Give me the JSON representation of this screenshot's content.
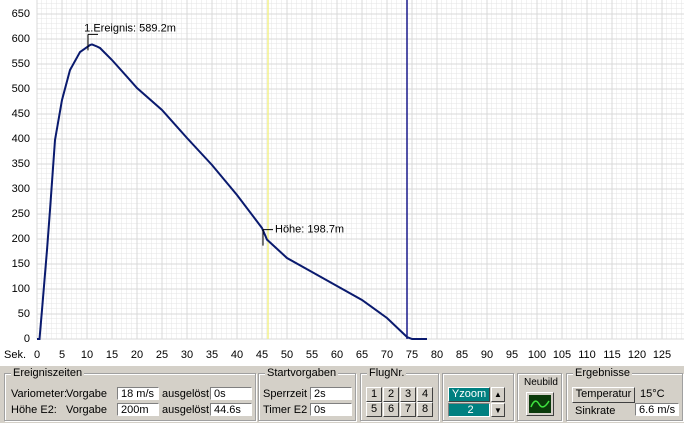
{
  "chart_data": {
    "type": "line",
    "x_label": "Sek.",
    "x": [
      0,
      0.5,
      1,
      1.5,
      2,
      2.6,
      3.6,
      5,
      6.6,
      8.6,
      10.6,
      11,
      12,
      12.6,
      15,
      20,
      25,
      30,
      35,
      40,
      45,
      46,
      50,
      55,
      60,
      65,
      70,
      74,
      75,
      78
    ],
    "series": [
      {
        "color": "#0a1a6e",
        "values": [
          0,
          0,
          58,
          118,
          178,
          258,
          398,
          478,
          538,
          574,
          588,
          589.2,
          585,
          582,
          558,
          502,
          458,
          402,
          348,
          288,
          222,
          198.7,
          162,
          134,
          106,
          78,
          42,
          4,
          0,
          0
        ]
      }
    ],
    "xlim": [
      0,
      130
    ],
    "ylim": [
      0,
      650
    ],
    "xticks": [
      0,
      5,
      10,
      15,
      20,
      25,
      30,
      35,
      40,
      45,
      50,
      55,
      60,
      65,
      70,
      75,
      80,
      85,
      90,
      95,
      100,
      105,
      110,
      115,
      120,
      125
    ],
    "yticks": [
      0,
      50,
      100,
      150,
      200,
      250,
      300,
      350,
      400,
      450,
      500,
      550,
      600,
      650
    ],
    "grid": true,
    "markers": [
      {
        "x": 46.2,
        "color": "#f2f08a"
      },
      {
        "x": 74,
        "color": "#1a1a8c"
      }
    ],
    "annotations": [
      {
        "text": "1.Ereignis: 589.2m",
        "x": 11,
        "y": 589.2
      },
      {
        "text": "Höhe: 198.7m",
        "x": 46,
        "y": 198.7
      }
    ]
  },
  "panels": {
    "ereigniszeiten": {
      "title": "Ereigniszeiten",
      "rows": [
        [
          "Variometer:",
          "Vorgabe",
          "18 m/s",
          "ausgelöst",
          "0s"
        ],
        [
          "Höhe E2:",
          "Vorgabe",
          "200m",
          "ausgelöst",
          "44.6s"
        ]
      ]
    },
    "startvorgaben": {
      "title": "Startvorgaben",
      "rows": [
        [
          "Sperrzeit",
          "2s"
        ],
        [
          "Timer E2",
          "0s"
        ]
      ]
    },
    "flugnr": {
      "title": "FlugNr.",
      "buttons": [
        "1",
        "2",
        "3",
        "4",
        "5",
        "6",
        "7",
        "8"
      ]
    },
    "yzoom": {
      "button": "Yzoom",
      "value": "2"
    },
    "neubild": {
      "title": "Neubild"
    },
    "ergebnisse": {
      "title": "Ergebnisse",
      "rows": [
        [
          "Temperatur",
          "15°C"
        ],
        [
          "Sinkrate",
          "6.6 m/s"
        ]
      ]
    }
  }
}
